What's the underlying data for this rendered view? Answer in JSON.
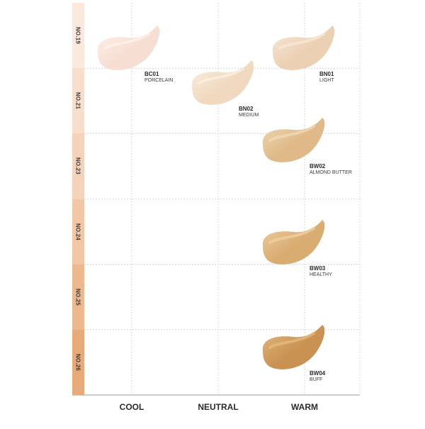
{
  "colors": {
    "grid": "#cfcfcf",
    "axis": "#9a9a9a"
  },
  "shade_scale": [
    {
      "label": "NO.19",
      "color": "#fbe9de"
    },
    {
      "label": "NO.21",
      "color": "#f8dfcd"
    },
    {
      "label": "NO.23",
      "color": "#f5d3bb"
    },
    {
      "label": "NO.24",
      "color": "#f1c7a6"
    },
    {
      "label": "NO.25",
      "color": "#ecb88f"
    },
    {
      "label": "NO.26",
      "color": "#e8aa78"
    }
  ],
  "undertones": [
    "COOL",
    "NEUTRAL",
    "WARM"
  ],
  "swatches": [
    {
      "code": "BC01",
      "name": "PORCELAIN",
      "undertone": "COOL",
      "shade": "NO.19",
      "color": "#f6ded2",
      "highlight": "#fdf1ea"
    },
    {
      "code": "BN01",
      "name": "LIGHT",
      "undertone": "WARM",
      "shade": "NO.19",
      "color": "#ecd0b4",
      "highlight": "#f8e8d8"
    },
    {
      "code": "BN02",
      "name": "MEDIUM",
      "undertone": "NEUTRAL",
      "shade": "NO.21",
      "color": "#f0d9bf",
      "highlight": "#fbefe1"
    },
    {
      "code": "BW02",
      "name": "ALMOND BUTTER",
      "undertone": "WARM",
      "shade": "NO.23",
      "color": "#dfb987",
      "highlight": "#f2dbb8"
    },
    {
      "code": "BW03",
      "name": "HEALTHY",
      "undertone": "WARM",
      "shade": "NO.25",
      "color": "#d9ac72",
      "highlight": "#efd0a1"
    },
    {
      "code": "BW04",
      "name": "BUFF",
      "undertone": "WARM",
      "shade": "NO.26",
      "color": "#c99252",
      "highlight": "#e6bb82"
    }
  ]
}
